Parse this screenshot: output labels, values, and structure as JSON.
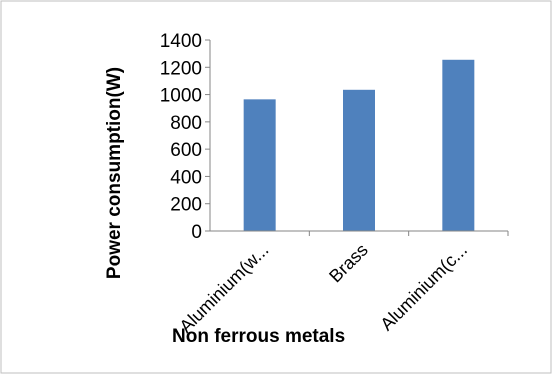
{
  "chart_data": {
    "type": "bar",
    "categories": [
      "Aluminium(w...",
      "Brass",
      "Aluminium(c..."
    ],
    "series": [
      {
        "values": [
          965,
          1035,
          1255
        ]
      }
    ],
    "title": "",
    "xlabel": "Non ferrous metals",
    "ylabel": "Power consumption(W)",
    "ylim": [
      0,
      1400
    ],
    "yticks": [
      0,
      200,
      400,
      600,
      800,
      1000,
      1200,
      1400
    ],
    "grid": false,
    "legend": "none",
    "bar_color": "#4f81bd",
    "axis_color": "#868686",
    "border_color": "#bfbfbf"
  }
}
